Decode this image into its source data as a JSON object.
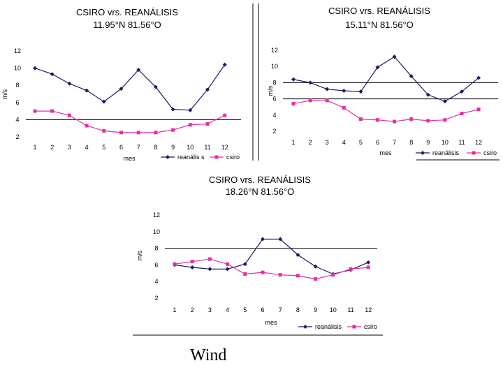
{
  "caption": "Wind",
  "colors": {
    "reanalisis": "#1a1a66",
    "csiro": "#e62ea3"
  },
  "chart_data": [
    {
      "type": "line",
      "title": "CSIRO vrs. REANÁLISIS",
      "subtitle": "11.95°N 81.56°O",
      "xlabel": "mes",
      "ylabel": "m/s",
      "x": [
        1,
        2,
        3,
        4,
        5,
        6,
        7,
        8,
        9,
        10,
        11,
        12
      ],
      "ylim": [
        2,
        12
      ],
      "yticks": [
        2,
        4,
        6,
        8,
        10,
        12
      ],
      "reference_lines": [
        4
      ],
      "legend_position": "bottom-right",
      "series": [
        {
          "name": "reanális s",
          "marker": "diamond",
          "values": [
            10.0,
            9.3,
            8.2,
            7.4,
            6.1,
            7.6,
            9.8,
            7.8,
            5.2,
            5.1,
            7.5,
            10.4
          ]
        },
        {
          "name": "csiro",
          "marker": "square",
          "values": [
            5.0,
            5.0,
            4.5,
            3.3,
            2.7,
            2.5,
            2.5,
            2.5,
            2.8,
            3.4,
            3.5,
            4.5
          ]
        }
      ]
    },
    {
      "type": "line",
      "title": "CSIRO vrs. REANÁLISIS",
      "subtitle": "15.11°N 81.56°O",
      "xlabel": "mes",
      "ylabel": "m/s",
      "x": [
        1,
        2,
        3,
        4,
        5,
        6,
        7,
        8,
        9,
        10,
        11,
        12
      ],
      "ylim": [
        2,
        12
      ],
      "yticks": [
        2,
        4,
        6,
        8,
        10,
        12
      ],
      "reference_lines": [
        6,
        8
      ],
      "legend_position": "bottom-right",
      "series": [
        {
          "name": "reanálisis",
          "marker": "diamond",
          "values": [
            8.4,
            8.0,
            7.2,
            7.0,
            6.9,
            9.9,
            11.2,
            8.8,
            6.5,
            5.7,
            6.9,
            8.6
          ]
        },
        {
          "name": "csiro",
          "marker": "square",
          "values": [
            5.4,
            5.8,
            5.8,
            4.9,
            3.5,
            3.4,
            3.2,
            3.5,
            3.3,
            3.4,
            4.2,
            4.7
          ]
        }
      ]
    },
    {
      "type": "line",
      "title": "CSIRO vrs. REANÁLISIS",
      "subtitle": "18.26°N 81.56°O",
      "xlabel": "mes",
      "ylabel": "m/s",
      "x": [
        1,
        2,
        3,
        4,
        5,
        6,
        7,
        8,
        9,
        10,
        11,
        12
      ],
      "ylim": [
        2,
        12
      ],
      "yticks": [
        2,
        4,
        6,
        8,
        10,
        12
      ],
      "reference_lines": [
        8
      ],
      "legend_position": "bottom-right",
      "series": [
        {
          "name": "reanálisis",
          "marker": "diamond",
          "values": [
            6.0,
            5.7,
            5.5,
            5.5,
            6.1,
            9.1,
            9.1,
            7.2,
            5.8,
            4.9,
            5.4,
            6.3
          ]
        },
        {
          "name": "csiro",
          "marker": "square",
          "values": [
            6.1,
            6.4,
            6.7,
            6.1,
            4.9,
            5.1,
            4.8,
            4.7,
            4.3,
            4.8,
            5.5,
            5.7
          ]
        }
      ]
    }
  ]
}
